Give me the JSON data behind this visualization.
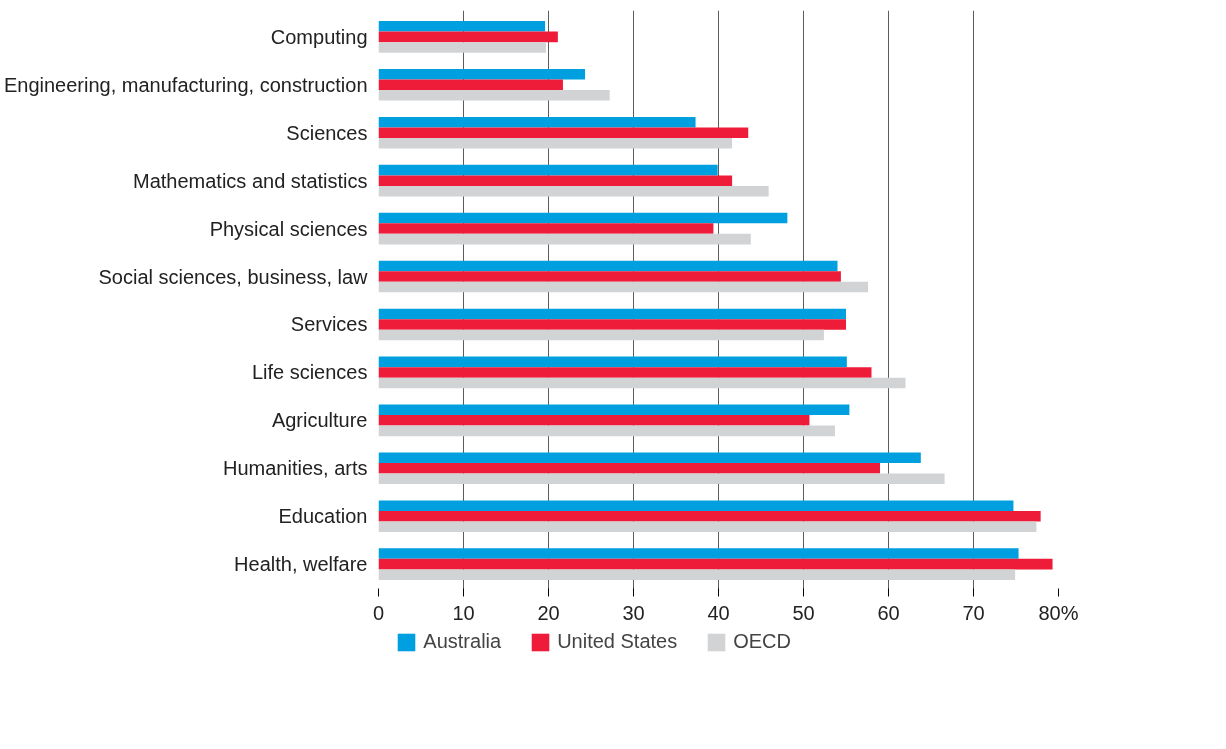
{
  "chart_data": {
    "type": "bar",
    "orientation": "horizontal",
    "categories": [
      "Computing",
      "Engineering, manufacturing, construction",
      "Sciences",
      "Mathematics and statistics",
      "Physical sciences",
      "Social sciences, business, law",
      "Services",
      "Life sciences",
      "Agriculture",
      "Humanities, arts",
      "Education",
      "Health, welfare"
    ],
    "series": [
      {
        "name": "Australia",
        "color": "#009fdf",
        "values": [
          19.6,
          24.3,
          37.3,
          39.9,
          48.1,
          54.0,
          55.0,
          55.1,
          55.4,
          63.8,
          74.7,
          75.3
        ]
      },
      {
        "name": "United States",
        "color": "#ee1c39",
        "values": [
          21.1,
          21.7,
          43.5,
          41.6,
          39.4,
          54.4,
          55.0,
          58.0,
          50.7,
          59.0,
          77.9,
          79.3
        ]
      },
      {
        "name": "OECD",
        "color": "#d2d3d5",
        "values": [
          19.7,
          27.2,
          41.6,
          45.9,
          43.8,
          57.6,
          52.4,
          62.0,
          53.7,
          66.6,
          77.4,
          74.9
        ]
      }
    ],
    "xlim": [
      0,
      80
    ],
    "xticks": [
      0,
      10,
      20,
      30,
      40,
      50,
      60,
      70,
      {
        "value": 80,
        "label": "80%"
      }
    ],
    "grid": "x",
    "legend": "bottom"
  }
}
